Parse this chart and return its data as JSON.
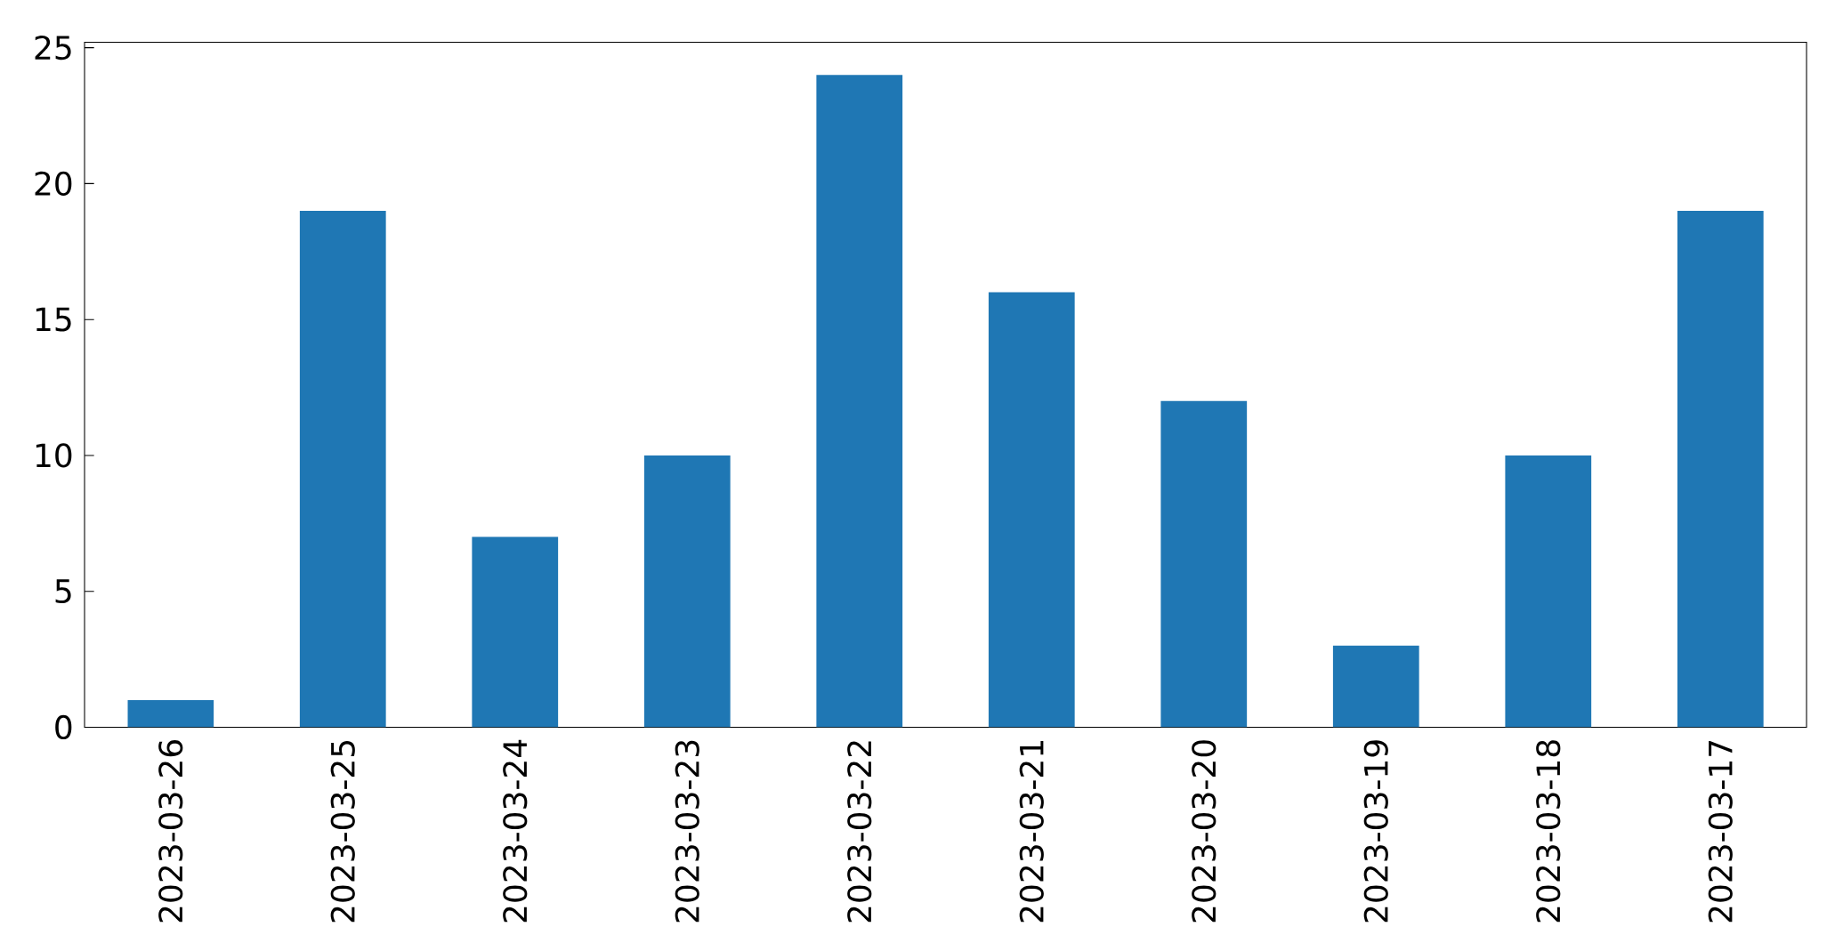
{
  "chart_data": {
    "type": "bar",
    "categories": [
      "2023-03-26",
      "2023-03-25",
      "2023-03-24",
      "2023-03-23",
      "2023-03-22",
      "2023-03-21",
      "2023-03-20",
      "2023-03-19",
      "2023-03-18",
      "2023-03-17"
    ],
    "values": [
      1,
      19,
      7,
      10,
      24,
      16,
      12,
      3,
      10,
      19
    ],
    "color": "#1f77b4",
    "ylim": [
      0,
      25.2
    ],
    "yticks": [
      0,
      5,
      10,
      15,
      20,
      25
    ]
  }
}
